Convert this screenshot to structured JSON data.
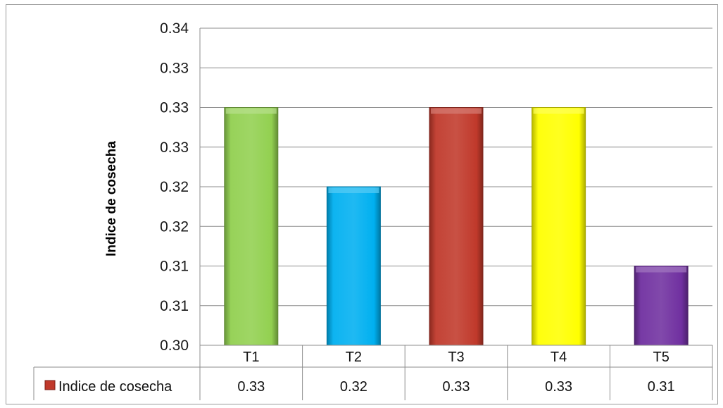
{
  "chart_data": {
    "type": "bar",
    "categories": [
      "T1",
      "T2",
      "T3",
      "T4",
      "T5"
    ],
    "series": [
      {
        "name": "Indice de cosecha",
        "values": [
          0.33,
          0.32,
          0.33,
          0.33,
          0.31
        ]
      }
    ],
    "bar_heights": [
      0.33,
      0.32,
      0.33,
      0.33,
      0.31
    ],
    "table_values": [
      "0.33",
      "0.32",
      "0.33",
      "0.33",
      "0.31"
    ],
    "bar_colors": [
      "#92d050",
      "#00b0f0",
      "#c0392b",
      "#ffff00",
      "#7030a0"
    ],
    "legend_marker_color": "#c0392b",
    "ylabel": "Indice de cosecha",
    "ylim": [
      0.3,
      0.34
    ],
    "ytick_values": [
      0.3,
      0.305,
      0.31,
      0.315,
      0.32,
      0.325,
      0.33,
      0.335,
      0.34
    ],
    "ytick_labels": [
      "0.30",
      "0.31",
      "0.31",
      "0.32",
      "0.32",
      "0.33",
      "0.33",
      "0.33",
      "0.34"
    ],
    "grid": true,
    "legend": "in data table, left column"
  }
}
